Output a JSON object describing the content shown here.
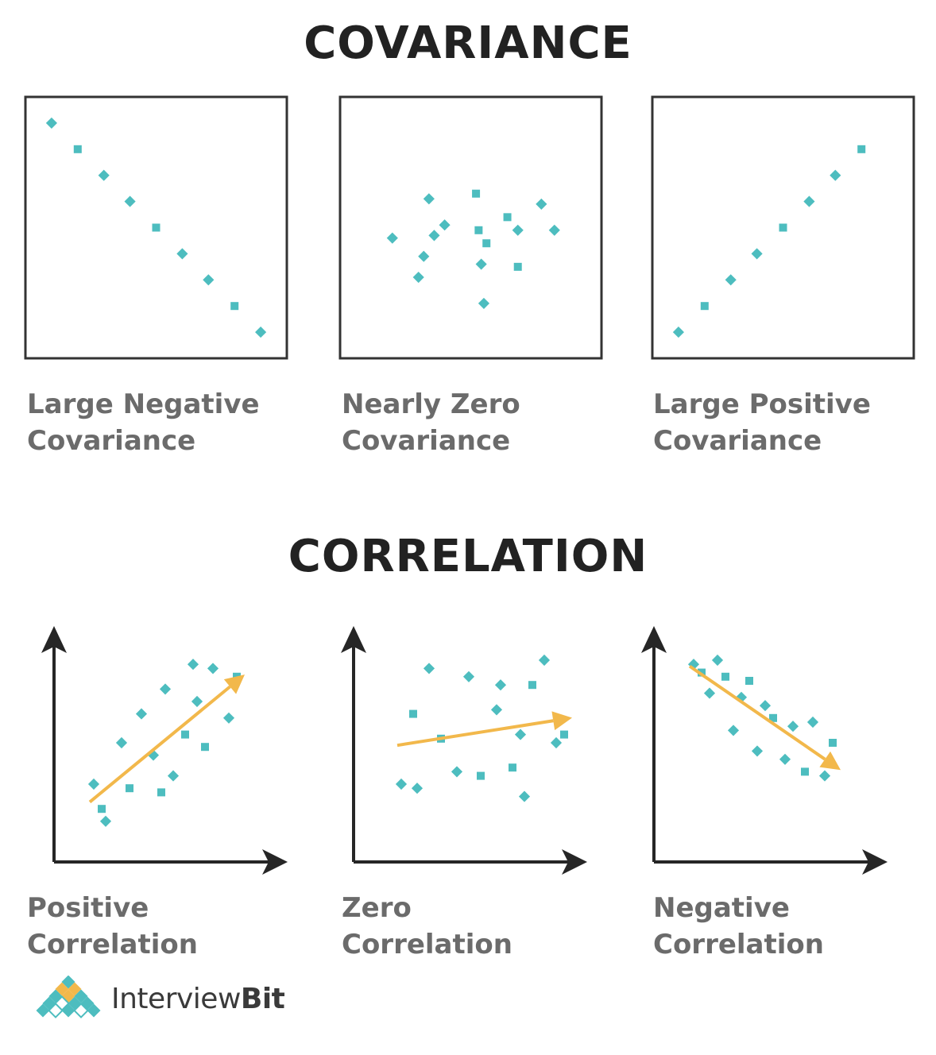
{
  "covariance": {
    "title": "COVARIANCE",
    "panels": [
      {
        "id": "large-negative",
        "caption": [
          "Large Negative",
          "Covariance"
        ]
      },
      {
        "id": "nearly-zero",
        "caption": [
          "Nearly Zero",
          "Covariance"
        ]
      },
      {
        "id": "large-positive",
        "caption": [
          "Large Positive",
          "Covariance"
        ]
      }
    ]
  },
  "correlation": {
    "title": "CORRELATION",
    "panels": [
      {
        "id": "positive",
        "caption": [
          "Positive",
          "Correlation"
        ]
      },
      {
        "id": "zero",
        "caption": [
          "Zero",
          "Correlation"
        ]
      },
      {
        "id": "negative",
        "caption": [
          "Negative",
          "Correlation"
        ]
      }
    ]
  },
  "logo": {
    "brand_a": "Interview",
    "brand_b": "Bit"
  },
  "colors": {
    "point": "#4dbdbf",
    "arrow": "#f2b84b",
    "axis": "#262626",
    "frame": "#333333",
    "caption": "#6b6b6b"
  },
  "chart_data": [
    {
      "type": "scatter",
      "trend": "large negative",
      "x": [
        1,
        2,
        3,
        4,
        5,
        6,
        7,
        8,
        9
      ],
      "y": [
        9,
        8,
        7,
        6,
        5,
        4,
        3,
        2,
        1
      ]
    },
    {
      "type": "scatter",
      "trend": "nearly zero",
      "x": [
        3.4,
        5.2,
        7.7,
        4.0,
        6.4,
        2.0,
        3.6,
        5.3,
        6.8,
        8.2,
        5.6,
        3.2,
        5.4,
        6.8,
        3.0,
        5.5
      ],
      "y": [
        6.1,
        6.3,
        5.9,
        5.1,
        5.4,
        4.6,
        4.7,
        4.9,
        4.9,
        4.9,
        4.4,
        3.9,
        3.6,
        3.5,
        3.1,
        2.1
      ]
    },
    {
      "type": "scatter",
      "trend": "large positive",
      "x": [
        1,
        2,
        3,
        4,
        5,
        6,
        7,
        8
      ],
      "y": [
        1,
        2,
        3,
        4,
        5,
        6,
        7,
        8
      ]
    },
    {
      "type": "scatter",
      "trend": "positive",
      "x": [
        0.6,
        0.8,
        0.9,
        1.3,
        1.5,
        1.8,
        2.1,
        2.3,
        2.4,
        2.6,
        2.9,
        3.1,
        3.2,
        3.4,
        3.6,
        4.0,
        4.2
      ],
      "y": [
        1.5,
        0.9,
        0.6,
        2.5,
        1.4,
        3.2,
        2.2,
        1.3,
        3.8,
        1.7,
        2.7,
        4.4,
        3.5,
        2.4,
        4.3,
        3.1,
        4.1
      ]
    },
    {
      "type": "scatter",
      "trend": "zero",
      "x": [
        0.8,
        1.1,
        1.2,
        1.5,
        1.8,
        2.2,
        2.5,
        2.8,
        3.2,
        3.3,
        3.6,
        3.8,
        3.9,
        4.1,
        4.4,
        4.7,
        4.9
      ],
      "y": [
        1.5,
        3.2,
        1.4,
        4.3,
        2.6,
        1.8,
        4.1,
        1.7,
        3.3,
        3.9,
        1.9,
        2.7,
        1.2,
        3.9,
        4.5,
        2.5,
        2.7
      ]
    },
    {
      "type": "scatter",
      "trend": "negative",
      "x": [
        0.6,
        0.8,
        1.0,
        1.2,
        1.4,
        1.6,
        1.8,
        2.0,
        2.2,
        2.4,
        2.6,
        2.9,
        3.1,
        3.4,
        3.6,
        3.9,
        4.1
      ],
      "y": [
        4.4,
        4.2,
        3.7,
        4.5,
        4.1,
        2.8,
        3.6,
        4.0,
        2.3,
        3.4,
        3.1,
        2.1,
        2.9,
        1.8,
        3.0,
        1.7,
        2.5
      ]
    }
  ]
}
